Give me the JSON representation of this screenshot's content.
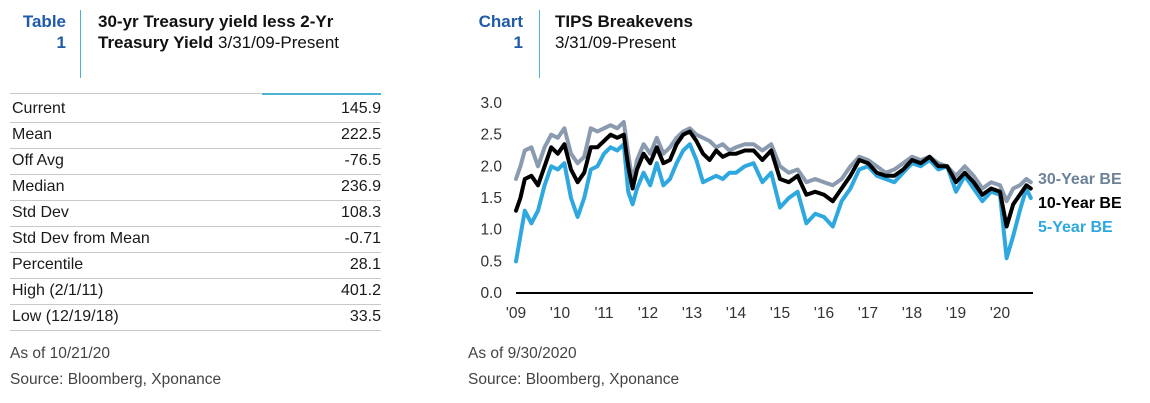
{
  "table_panel": {
    "tag_label": "Table",
    "tag_number": "1",
    "title_bold_line1": "30-yr Treasury yield less 2-Yr",
    "title_bold_line2": "Treasury Yield",
    "title_date": "3/31/09-Present",
    "rows": [
      {
        "label": "Current",
        "value": "145.9"
      },
      {
        "label": "Mean",
        "value": "222.5"
      },
      {
        "label": "Off Avg",
        "value": "-76.5"
      },
      {
        "label": "Median",
        "value": "236.9"
      },
      {
        "label": "Std Dev",
        "value": "108.3"
      },
      {
        "label": "Std Dev from Mean",
        "value": "-0.71"
      },
      {
        "label": "Percentile",
        "value": "28.1"
      },
      {
        "label": "High (2/1/11)",
        "value": "401.2"
      },
      {
        "label": "Low (12/19/18)",
        "value": "33.5"
      }
    ],
    "as_of": "As of 10/21/20",
    "source": "Source: Bloomberg, Xponance"
  },
  "chart_panel": {
    "tag_label": "Chart",
    "tag_number": "1",
    "title_bold": "TIPS Breakevens",
    "title_date": "3/31/09-Present",
    "as_of": "As of 9/30/2020",
    "source": "Source: Bloomberg, Xponance"
  },
  "colors": {
    "accent_blue": "#1f5ba8",
    "rule_cyan": "#4eb3d3",
    "series_30y": "#8a9bb0",
    "series_10y": "#000000",
    "series_5y": "#2fa8e0",
    "legend_30y": "#6d8299"
  },
  "chart_data": {
    "type": "line",
    "title": "TIPS Breakevens",
    "subtitle": "3/31/09-Present",
    "xlabel": "",
    "ylabel": "",
    "x_tick_labels": [
      "'09",
      "'10",
      "'11",
      "'12",
      "'13",
      "'14",
      "'15",
      "'16",
      "'17",
      "'18",
      "'19",
      "'20"
    ],
    "y_ticks": [
      "0.0",
      "0.5",
      "1.0",
      "1.5",
      "2.0",
      "2.5",
      "3.0"
    ],
    "ylim": [
      0,
      3
    ],
    "xlim": [
      2009.0,
      2020.75
    ],
    "grid": false,
    "legend_placement": "right",
    "series": [
      {
        "name": "30-Year BE",
        "x": [
          2009.0,
          2009.1,
          2009.2,
          2009.35,
          2009.5,
          2009.65,
          2009.8,
          2009.95,
          2010.1,
          2010.25,
          2010.4,
          2010.55,
          2010.7,
          2010.85,
          2011.0,
          2011.15,
          2011.3,
          2011.45,
          2011.55,
          2011.65,
          2011.75,
          2011.9,
          2012.05,
          2012.2,
          2012.35,
          2012.5,
          2012.65,
          2012.8,
          2012.95,
          2013.1,
          2013.25,
          2013.4,
          2013.55,
          2013.7,
          2013.85,
          2014.0,
          2014.2,
          2014.4,
          2014.6,
          2014.8,
          2015.0,
          2015.2,
          2015.4,
          2015.6,
          2015.8,
          2016.0,
          2016.2,
          2016.4,
          2016.6,
          2016.8,
          2017.0,
          2017.2,
          2017.4,
          2017.6,
          2017.8,
          2018.0,
          2018.2,
          2018.4,
          2018.6,
          2018.8,
          2019.0,
          2019.2,
          2019.4,
          2019.6,
          2019.8,
          2020.0,
          2020.15,
          2020.3,
          2020.45,
          2020.6,
          2020.7
        ],
        "values": [
          1.8,
          2.0,
          2.25,
          2.3,
          2.0,
          2.3,
          2.5,
          2.45,
          2.6,
          2.2,
          2.05,
          2.15,
          2.6,
          2.55,
          2.6,
          2.65,
          2.6,
          2.7,
          2.2,
          1.75,
          2.1,
          2.35,
          2.2,
          2.45,
          2.2,
          2.3,
          2.45,
          2.55,
          2.6,
          2.5,
          2.45,
          2.4,
          2.3,
          2.35,
          2.25,
          2.3,
          2.35,
          2.35,
          2.25,
          2.35,
          2.0,
          1.9,
          1.95,
          1.75,
          1.8,
          1.75,
          1.7,
          1.8,
          2.0,
          2.15,
          2.1,
          2.0,
          1.9,
          1.95,
          2.05,
          2.15,
          2.1,
          2.15,
          2.05,
          2.0,
          1.85,
          2.0,
          1.85,
          1.65,
          1.75,
          1.7,
          1.45,
          1.65,
          1.7,
          1.8,
          1.75
        ]
      },
      {
        "name": "10-Year BE",
        "x": [
          2009.0,
          2009.1,
          2009.2,
          2009.35,
          2009.5,
          2009.65,
          2009.8,
          2009.95,
          2010.1,
          2010.25,
          2010.4,
          2010.55,
          2010.7,
          2010.85,
          2011.0,
          2011.15,
          2011.3,
          2011.45,
          2011.55,
          2011.65,
          2011.75,
          2011.9,
          2012.05,
          2012.2,
          2012.35,
          2012.5,
          2012.65,
          2012.8,
          2012.95,
          2013.1,
          2013.25,
          2013.4,
          2013.55,
          2013.7,
          2013.85,
          2014.0,
          2014.2,
          2014.4,
          2014.6,
          2014.8,
          2015.0,
          2015.2,
          2015.4,
          2015.6,
          2015.8,
          2016.0,
          2016.2,
          2016.4,
          2016.6,
          2016.8,
          2017.0,
          2017.2,
          2017.4,
          2017.6,
          2017.8,
          2018.0,
          2018.2,
          2018.4,
          2018.6,
          2018.8,
          2019.0,
          2019.2,
          2019.4,
          2019.6,
          2019.8,
          2020.0,
          2020.15,
          2020.3,
          2020.45,
          2020.6,
          2020.7
        ],
        "values": [
          1.3,
          1.5,
          1.8,
          1.85,
          1.7,
          2.0,
          2.3,
          2.2,
          2.35,
          1.95,
          1.75,
          1.9,
          2.3,
          2.3,
          2.4,
          2.5,
          2.45,
          2.5,
          2.0,
          1.65,
          1.95,
          2.2,
          2.05,
          2.3,
          2.05,
          2.1,
          2.35,
          2.5,
          2.55,
          2.4,
          2.2,
          2.1,
          2.25,
          2.15,
          2.2,
          2.2,
          2.25,
          2.25,
          2.1,
          2.25,
          1.8,
          1.75,
          1.85,
          1.55,
          1.6,
          1.55,
          1.45,
          1.65,
          1.85,
          2.1,
          2.05,
          1.9,
          1.85,
          1.85,
          1.95,
          2.1,
          2.05,
          2.15,
          2.0,
          2.0,
          1.75,
          1.9,
          1.75,
          1.55,
          1.65,
          1.6,
          1.05,
          1.4,
          1.55,
          1.7,
          1.65
        ]
      },
      {
        "name": "5-Year BE",
        "x": [
          2009.0,
          2009.1,
          2009.2,
          2009.35,
          2009.5,
          2009.65,
          2009.8,
          2009.95,
          2010.1,
          2010.25,
          2010.4,
          2010.55,
          2010.7,
          2010.85,
          2011.0,
          2011.15,
          2011.3,
          2011.45,
          2011.55,
          2011.65,
          2011.75,
          2011.9,
          2012.05,
          2012.2,
          2012.35,
          2012.5,
          2012.65,
          2012.8,
          2012.95,
          2013.1,
          2013.25,
          2013.4,
          2013.55,
          2013.7,
          2013.85,
          2014.0,
          2014.2,
          2014.4,
          2014.6,
          2014.8,
          2015.0,
          2015.2,
          2015.4,
          2015.6,
          2015.8,
          2016.0,
          2016.2,
          2016.4,
          2016.6,
          2016.8,
          2017.0,
          2017.2,
          2017.4,
          2017.6,
          2017.8,
          2018.0,
          2018.2,
          2018.4,
          2018.6,
          2018.8,
          2019.0,
          2019.2,
          2019.4,
          2019.6,
          2019.8,
          2020.0,
          2020.15,
          2020.3,
          2020.45,
          2020.6,
          2020.7
        ],
        "values": [
          0.5,
          0.9,
          1.3,
          1.1,
          1.3,
          1.7,
          2.0,
          1.95,
          2.05,
          1.5,
          1.2,
          1.5,
          1.95,
          2.0,
          2.2,
          2.3,
          2.25,
          2.35,
          1.6,
          1.4,
          1.65,
          1.9,
          1.7,
          2.05,
          1.7,
          1.8,
          2.05,
          2.25,
          2.35,
          2.1,
          1.75,
          1.8,
          1.85,
          1.8,
          1.9,
          1.9,
          2.0,
          2.05,
          1.75,
          1.9,
          1.35,
          1.5,
          1.6,
          1.1,
          1.25,
          1.2,
          1.05,
          1.45,
          1.65,
          1.95,
          2.0,
          1.85,
          1.8,
          1.75,
          1.9,
          2.05,
          2.0,
          2.1,
          1.95,
          2.0,
          1.6,
          1.85,
          1.65,
          1.45,
          1.6,
          1.55,
          0.55,
          0.9,
          1.3,
          1.65,
          1.5
        ]
      }
    ]
  }
}
